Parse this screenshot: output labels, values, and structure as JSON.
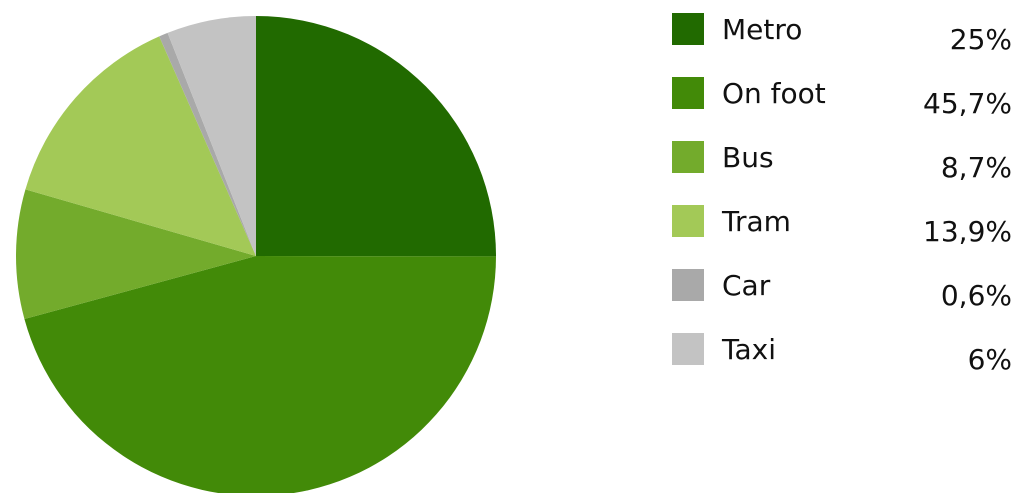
{
  "chart_data": {
    "type": "pie",
    "title": "",
    "slices": [
      {
        "label": "Metro",
        "value": 25,
        "display": "25%",
        "color": "#216a00"
      },
      {
        "label": "On foot",
        "value": 45.7,
        "display": "45,7%",
        "color": "#428a08"
      },
      {
        "label": "Bus",
        "value": 8.7,
        "display": "8,7%",
        "color": "#73ab2c"
      },
      {
        "label": "Tram",
        "value": 13.9,
        "display": "13,9%",
        "color": "#a3c957"
      },
      {
        "label": "Car",
        "value": 0.6,
        "display": "0,6%",
        "color": "#a9a9a9"
      },
      {
        "label": "Taxi",
        "value": 6,
        "display": "6%",
        "color": "#c3c3c3"
      }
    ],
    "start_angle": "12 o'clock",
    "direction": "clockwise",
    "legend": "right"
  }
}
